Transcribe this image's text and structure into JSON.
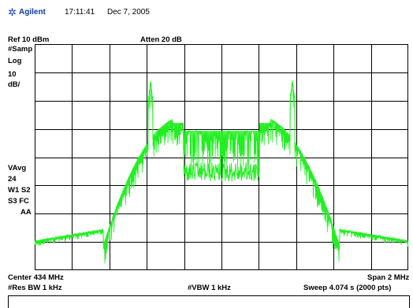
{
  "header": {
    "brand": "Agilent",
    "time": "17:11:41",
    "date": "Dec 7, 2005"
  },
  "settings": {
    "ref_level": "Ref 10 dBm",
    "atten": "Atten 20 dB",
    "detector": "#Samp",
    "scale_type": "Log",
    "scale_per_div": "10",
    "scale_unit": "dB/",
    "averaging": "VAvg",
    "averaging_count": "24",
    "trace_mode_1": "W1 S2",
    "trace_mode_2": "S3 FC",
    "trace_mode_3": "AA"
  },
  "footer": {
    "center": "Center 434 MHz",
    "span": "Span 2 MHz",
    "res_bw": "#Res BW 1 kHz",
    "vbw": "#VBW 1 kHz",
    "sweep": "Sweep 4.074 s (2000 pts)"
  },
  "colors": {
    "trace": "#22ee22",
    "grid": "#000000",
    "brand": "#0a3aa8"
  },
  "trace": {
    "description_free": true,
    "ref_dbm": 10,
    "db_per_div": 10,
    "divisions_y": 8,
    "center_mhz": 434,
    "span_mhz": 2,
    "points": 2000
  }
}
